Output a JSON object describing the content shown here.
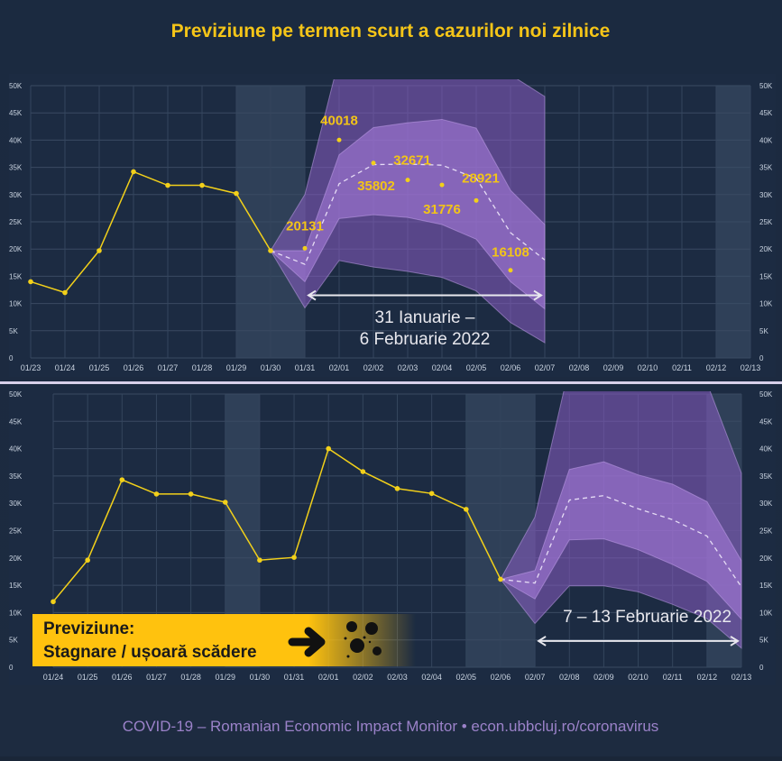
{
  "title": "Previziune pe termen scurt a cazurilor noi zilnice",
  "footer": "COVID-19 – Romanian Economic Impact Monitor • econ.ubbcluj.ro/coronavirus",
  "colors": {
    "background": "#1a2638",
    "title": "#f5c518",
    "actual": "#f2d01a",
    "band": "#9b6fd0",
    "footer": "#9b82c9",
    "callout": "#ffc20e"
  },
  "callout": {
    "line1": "Previziune:",
    "line2": "Stagnare / ușoară scădere",
    "icons": [
      "arrow-right-icon",
      "virus-icon"
    ]
  },
  "chart_data": [
    {
      "type": "line",
      "title": "Previziune 31 Ianuarie – 6 Februarie 2022",
      "range_label_1": "31 Ianuarie –",
      "range_label_2": "6 Februarie 2022",
      "ylim": [
        0,
        50000
      ],
      "yticks": [
        "0",
        "5K",
        "10K",
        "15K",
        "20K",
        "25K",
        "30K",
        "35K",
        "40K",
        "45K",
        "50K"
      ],
      "categories": [
        "01/23",
        "01/24",
        "01/25",
        "01/26",
        "01/27",
        "01/28",
        "01/29",
        "01/30",
        "01/31",
        "02/01",
        "02/02",
        "02/03",
        "02/04",
        "02/05",
        "02/06",
        "02/07",
        "02/08",
        "02/09",
        "02/10",
        "02/11",
        "02/12",
        "02/13"
      ],
      "shaded": [
        [
          6,
          8
        ],
        [
          20,
          21
        ]
      ],
      "actual": [
        14000,
        12000,
        19700,
        34200,
        31700,
        31700,
        30200,
        19700
      ],
      "observed_points": {
        "start": 8,
        "values": [
          20131,
          40018,
          35802,
          32671,
          31776,
          28921,
          16108
        ],
        "labels": [
          "20131",
          "40018",
          "35802",
          "32671",
          "31776",
          "28921",
          "16108"
        ]
      },
      "forecast": {
        "start": 7,
        "outer_upper": [
          19700,
          30000,
          55000,
          60000,
          60000,
          60000,
          60000,
          52000,
          48000
        ],
        "inner_upper": [
          19700,
          19700,
          37300,
          42300,
          43200,
          43800,
          42200,
          30800,
          24500
        ],
        "median": [
          19700,
          17200,
          32000,
          35500,
          35600,
          35400,
          33000,
          23000,
          18000
        ],
        "inner_lower": [
          19700,
          14000,
          25600,
          26300,
          25800,
          24500,
          21800,
          14000,
          9000
        ],
        "outer_lower": [
          19700,
          9200,
          17900,
          16700,
          15900,
          14800,
          12300,
          6500,
          2800
        ]
      },
      "arrow": [
        8,
        15
      ]
    },
    {
      "type": "line",
      "title": "Previziune 7 – 13 Februarie 2022",
      "range_label_1": "7 – 13 Februarie 2022",
      "ylim": [
        0,
        50000
      ],
      "yticks": [
        "0",
        "5K",
        "10K",
        "15K",
        "20K",
        "25K",
        "30K",
        "35K",
        "40K",
        "45K",
        "50K"
      ],
      "categories": [
        "01/24",
        "01/25",
        "01/26",
        "01/27",
        "01/28",
        "01/29",
        "01/30",
        "01/31",
        "02/01",
        "02/02",
        "02/03",
        "02/04",
        "02/05",
        "02/06",
        "02/07",
        "02/08",
        "02/09",
        "02/10",
        "02/11",
        "02/12",
        "02/13"
      ],
      "shaded": [
        [
          5,
          6
        ],
        [
          12,
          14
        ],
        [
          19,
          20
        ]
      ],
      "actual": [
        12000,
        19600,
        34300,
        31700,
        31700,
        30200,
        19600,
        20100,
        40000,
        35800,
        32700,
        31800,
        28900,
        16100
      ],
      "forecast": {
        "start": 13,
        "outer_upper": [
          16100,
          27500,
          55000,
          60000,
          60000,
          60000,
          52000,
          35500
        ],
        "inner_upper": [
          16100,
          17700,
          36200,
          37600,
          35200,
          33500,
          30300,
          19500
        ],
        "median": [
          16100,
          15400,
          30600,
          31400,
          29000,
          27000,
          24000,
          14700
        ],
        "inner_lower": [
          16100,
          12500,
          23300,
          23500,
          21500,
          18800,
          15700,
          8800
        ],
        "outer_lower": [
          16100,
          8000,
          14900,
          14900,
          13800,
          11500,
          8900,
          3500
        ]
      },
      "arrow": [
        14,
        20
      ]
    }
  ]
}
